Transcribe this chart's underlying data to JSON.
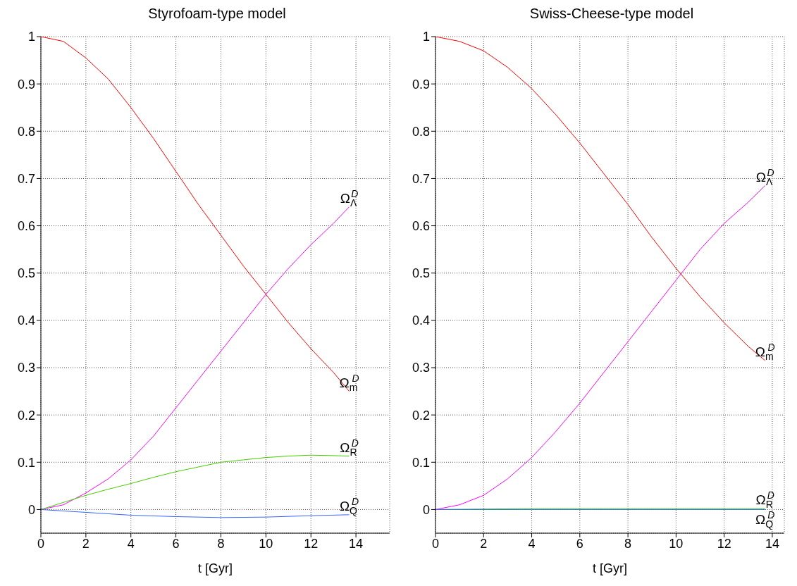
{
  "chart_data": [
    {
      "type": "line",
      "title": "Styrofoam-type model",
      "xlabel": "t [Gyr]",
      "xlim": [
        0,
        15.5
      ],
      "xticks": [
        0,
        2,
        4,
        6,
        8,
        10,
        12,
        14
      ],
      "ylim": [
        -0.05,
        1
      ],
      "yticks": [
        0,
        0.1,
        0.2,
        0.3,
        0.4,
        0.5,
        0.6,
        0.7,
        0.8,
        0.9,
        1
      ],
      "grid": true,
      "series": [
        {
          "name": "Ω$_{m}$$^{D}$",
          "color": "#ff0000",
          "x": [
            0,
            1,
            2,
            3,
            4,
            5,
            6,
            7,
            8,
            9,
            10,
            11,
            12,
            13,
            13.7
          ],
          "values": [
            1,
            0.99,
            0.955,
            0.91,
            0.85,
            0.785,
            0.715,
            0.645,
            0.58,
            0.515,
            0.455,
            0.395,
            0.34,
            0.29,
            0.25
          ]
        },
        {
          "name": "Ω$_{Λ}$$^{D}$",
          "color": "#ff00ff",
          "x": [
            0,
            1,
            2,
            3,
            4,
            5,
            6,
            7,
            8,
            9,
            10,
            11,
            12,
            13,
            13.7
          ],
          "values": [
            0,
            0.01,
            0.035,
            0.065,
            0.105,
            0.155,
            0.215,
            0.275,
            0.335,
            0.395,
            0.455,
            0.51,
            0.56,
            0.605,
            0.64
          ]
        },
        {
          "name": "Ω$_{R}$$^{D}$",
          "color": "#44cc00",
          "x": [
            0,
            1,
            2,
            3,
            4,
            5,
            6,
            7,
            8,
            9,
            10,
            11,
            12,
            13,
            13.7
          ],
          "values": [
            0,
            0.015,
            0.03,
            0.043,
            0.055,
            0.068,
            0.08,
            0.09,
            0.1,
            0.105,
            0.11,
            0.113,
            0.115,
            0.114,
            0.113
          ]
        },
        {
          "name": "Ω$_{Q}$$^{D}$",
          "color": "#3366ff",
          "x": [
            0,
            2,
            4,
            6,
            8,
            10,
            12,
            13.7
          ],
          "values": [
            0,
            -0.006,
            -0.012,
            -0.015,
            -0.017,
            -0.016,
            -0.013,
            -0.011
          ]
        }
      ]
    },
    {
      "type": "line",
      "title": "Swiss-Cheese-type model",
      "xlabel": "t [Gyr]",
      "xlim": [
        0,
        14.5
      ],
      "xticks": [
        0,
        2,
        4,
        6,
        8,
        10,
        12,
        14
      ],
      "ylim": [
        -0.05,
        1
      ],
      "yticks": [
        0,
        0.1,
        0.2,
        0.3,
        0.4,
        0.5,
        0.6,
        0.7,
        0.8,
        0.9,
        1
      ],
      "grid": true,
      "series": [
        {
          "name": "Ω$_{Λ}$$^{D}$",
          "color": "#ff00ff",
          "x": [
            0,
            1,
            2,
            3,
            4,
            5,
            6,
            7,
            8,
            9,
            10,
            11,
            12,
            13,
            13.7
          ],
          "values": [
            0,
            0.01,
            0.03,
            0.065,
            0.11,
            0.165,
            0.225,
            0.29,
            0.355,
            0.42,
            0.485,
            0.55,
            0.605,
            0.65,
            0.685
          ]
        },
        {
          "name": "Ω$_{m}$$^{D}$",
          "color": "#ff0000",
          "x": [
            0,
            1,
            2,
            3,
            4,
            5,
            6,
            7,
            8,
            9,
            10,
            11,
            12,
            13,
            13.7
          ],
          "values": [
            1,
            0.99,
            0.97,
            0.935,
            0.89,
            0.835,
            0.775,
            0.71,
            0.645,
            0.575,
            0.51,
            0.45,
            0.395,
            0.345,
            0.315
          ]
        },
        {
          "name": "Ω$_{R}$$^{D}$",
          "color": "#44cc00",
          "x": [
            0,
            4,
            8,
            13.7
          ],
          "values": [
            0,
            0.002,
            0.002,
            0.002
          ]
        },
        {
          "name": "Ω$_{Q}$$^{D}$",
          "color": "#3366ff",
          "x": [
            0,
            4,
            8,
            13.7
          ],
          "values": [
            0,
            0,
            0,
            0
          ]
        }
      ]
    }
  ]
}
